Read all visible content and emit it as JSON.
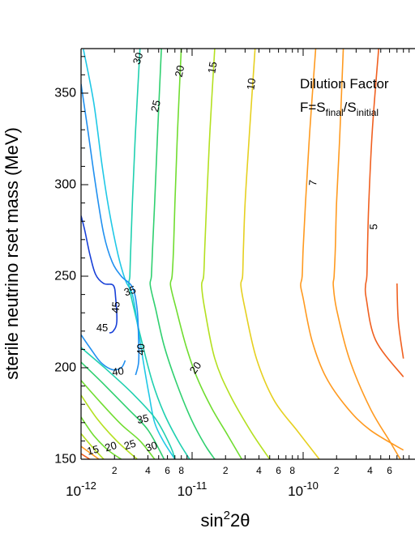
{
  "chart_data": {
    "type": "contour",
    "xlabel": "sin",
    "xlabel_sup": "2",
    "xlabel_tail": "2θ",
    "ylabel": "sterile neutrino rset mass (MeV)",
    "annotation": {
      "line1": "Dilution Factor",
      "line2_prefix": "F=S",
      "line2_sub1": "final",
      "line2_mid": "/S",
      "line2_sub2": "initial"
    },
    "x_scale": "log",
    "xlim": [
      1e-12,
      8e-10
    ],
    "ylim": [
      150,
      375
    ],
    "x_major_ticks": [
      {
        "value": 1e-12,
        "base": "10",
        "exp": "-12"
      },
      {
        "value": 1e-11,
        "base": "10",
        "exp": "-11"
      },
      {
        "value": 1e-10,
        "base": "10",
        "exp": "-10"
      }
    ],
    "x_minor_labels": [
      {
        "value": 2e-12,
        "label": "2"
      },
      {
        "value": 4e-12,
        "label": "4"
      },
      {
        "value": 6e-12,
        "label": "6"
      },
      {
        "value": 8e-12,
        "label": "8"
      },
      {
        "value": 2e-11,
        "label": "2"
      },
      {
        "value": 4e-11,
        "label": "4"
      },
      {
        "value": 6e-11,
        "label": "6"
      },
      {
        "value": 8e-11,
        "label": "8"
      },
      {
        "value": 2e-10,
        "label": "2"
      },
      {
        "value": 4e-10,
        "label": "4"
      },
      {
        "value": 6e-10,
        "label": "6"
      }
    ],
    "y_ticks": [
      150,
      200,
      250,
      300,
      350
    ],
    "contours": [
      {
        "level": "5",
        "color": "#f06020",
        "points": [
          [
            4.8e-10,
            375
          ],
          [
            4.2e-10,
            330
          ],
          [
            3.9e-10,
            290
          ],
          [
            3.8e-10,
            265
          ],
          [
            3.75e-10,
            250
          ],
          [
            3.65e-10,
            245
          ],
          [
            3.7e-10,
            238
          ],
          [
            4.5e-10,
            215
          ],
          [
            8e-10,
            195
          ]
        ],
        "labels": [
          {
            "x": 4.3e-10,
            "y": 277,
            "angle": -88,
            "text": "5"
          }
        ]
      },
      {
        "level": "5",
        "color": "#f06020",
        "points": [
          [
            7e-10,
            246
          ],
          [
            7.2e-10,
            225
          ],
          [
            8e-10,
            205
          ]
        ],
        "labels": []
      },
      {
        "level": "7",
        "color": "#ff9a20",
        "points": [
          [
            1.3e-10,
            375
          ],
          [
            1.15e-10,
            330
          ],
          [
            1.05e-10,
            290
          ],
          [
            1e-10,
            265
          ],
          [
            9.8e-11,
            250
          ],
          [
            9.5e-11,
            245
          ],
          [
            1e-10,
            238
          ],
          [
            1.2e-10,
            215
          ],
          [
            1.6e-10,
            195
          ],
          [
            2.5e-10,
            178
          ],
          [
            4e-10,
            166
          ],
          [
            8e-10,
            155
          ]
        ],
        "labels": [
          {
            "x": 1.22e-10,
            "y": 301,
            "angle": -85,
            "text": "7"
          }
        ]
      },
      {
        "level": "7",
        "color": "#ff9a20",
        "points": [
          [
            2.3e-10,
            375
          ],
          [
            2.15e-10,
            330
          ],
          [
            2e-10,
            290
          ],
          [
            1.95e-10,
            265
          ],
          [
            1.9e-10,
            250
          ],
          [
            1.87e-10,
            245
          ],
          [
            2e-10,
            232
          ],
          [
            2.6e-10,
            205
          ],
          [
            4e-10,
            178
          ],
          [
            6e-10,
            160
          ],
          [
            7.5e-10,
            150
          ]
        ],
        "labels": []
      },
      {
        "level": "10",
        "color": "#e6d020",
        "points": [
          [
            3.7e-11,
            375
          ],
          [
            3.3e-11,
            330
          ],
          [
            3e-11,
            290
          ],
          [
            2.9e-11,
            265
          ],
          [
            2.85e-11,
            250
          ],
          [
            2.75e-11,
            245
          ],
          [
            3e-11,
            232
          ],
          [
            3.8e-11,
            205
          ],
          [
            5.5e-11,
            182
          ],
          [
            9e-11,
            165
          ],
          [
            1.4e-10,
            150
          ]
        ],
        "labels": [
          {
            "x": 3.4e-11,
            "y": 355,
            "angle": -82,
            "text": "10"
          }
        ]
      },
      {
        "level": "15",
        "color": "#b4e020",
        "points": [
          [
            1.6e-11,
            375
          ],
          [
            1.45e-11,
            330
          ],
          [
            1.35e-11,
            290
          ],
          [
            1.3e-11,
            265
          ],
          [
            1.27e-11,
            250
          ],
          [
            1.22e-11,
            245
          ],
          [
            1.3e-11,
            232
          ],
          [
            1.6e-11,
            205
          ],
          [
            2.2e-11,
            185
          ],
          [
            3.4e-11,
            165
          ],
          [
            5e-11,
            150
          ]
        ],
        "labels": [
          {
            "x": 1.52e-11,
            "y": 364,
            "angle": -80,
            "text": "15"
          }
        ]
      },
      {
        "level": "20",
        "color": "#70dd30",
        "points": [
          [
            8e-12,
            375
          ],
          [
            7.4e-12,
            330
          ],
          [
            7e-12,
            290
          ],
          [
            6.8e-12,
            265
          ],
          [
            6.6e-12,
            250
          ],
          [
            6.4e-12,
            245
          ],
          [
            7.2e-12,
            232
          ],
          [
            8.8e-12,
            212
          ],
          [
            1.1e-11,
            195
          ],
          [
            1.5e-11,
            178
          ],
          [
            2.1e-11,
            163
          ],
          [
            2.8e-11,
            150
          ]
        ],
        "labels": [
          {
            "x": 7.7e-12,
            "y": 362,
            "angle": -78,
            "text": "20"
          },
          {
            "x": 1.07e-11,
            "y": 200,
            "angle": -55,
            "text": "20"
          }
        ]
      },
      {
        "level": "25",
        "color": "#30d070",
        "points": [
          [
            5.3e-12,
            375
          ],
          [
            4.9e-12,
            330
          ],
          [
            4.6e-12,
            290
          ],
          [
            4.4e-12,
            265
          ],
          [
            4.3e-12,
            250
          ],
          [
            4.2e-12,
            245
          ],
          [
            4.7e-12,
            232
          ],
          [
            5.6e-12,
            212
          ],
          [
            7.2e-12,
            192
          ],
          [
            9.8e-12,
            172
          ],
          [
            1.3e-11,
            158
          ],
          [
            1.6e-11,
            150
          ]
        ],
        "labels": [
          {
            "x": 4.7e-12,
            "y": 343,
            "angle": -76,
            "text": "25"
          }
        ]
      },
      {
        "level": "30",
        "color": "#20d0b0",
        "points": [
          [
            3.4e-12,
            375
          ],
          [
            3.1e-12,
            330
          ],
          [
            2.9e-12,
            290
          ],
          [
            2.8e-12,
            265
          ],
          [
            2.75e-12,
            250
          ],
          [
            2.7e-12,
            245
          ],
          [
            3e-12,
            232
          ],
          [
            3.6e-12,
            212
          ],
          [
            4.4e-12,
            192
          ],
          [
            5.6e-12,
            175
          ],
          [
            7.5e-12,
            160
          ],
          [
            9.5e-12,
            150
          ]
        ],
        "labels": [
          {
            "x": 3.25e-12,
            "y": 369,
            "angle": -72,
            "text": "30"
          }
        ]
      },
      {
        "level": "35",
        "color": "#20c8e6",
        "points": [
          [
            1.05e-12,
            374
          ],
          [
            1.3e-12,
            345
          ],
          [
            1.55e-12,
            310
          ],
          [
            1.8e-12,
            285
          ],
          [
            2.15e-12,
            262
          ],
          [
            2.5e-12,
            248
          ],
          [
            2.9e-12,
            240
          ],
          [
            3.2e-12,
            225
          ],
          [
            3.6e-12,
            205
          ],
          [
            4.1e-12,
            185
          ],
          [
            4.6e-12,
            170
          ],
          [
            5.5e-12,
            160
          ],
          [
            7e-12,
            150
          ]
        ],
        "labels": [
          {
            "x": 2.75e-12,
            "y": 242,
            "angle": -18,
            "text": "35"
          },
          {
            "x": 3.6e-12,
            "y": 172,
            "angle": -12,
            "text": "35"
          }
        ]
      },
      {
        "level": "40",
        "color": "#2090f0",
        "points": [
          [
            1e-12,
            355
          ],
          [
            1.15e-12,
            330
          ],
          [
            1.35e-12,
            300
          ],
          [
            1.6e-12,
            273
          ],
          [
            1.9e-12,
            258
          ],
          [
            2.3e-12,
            250
          ],
          [
            2.9e-12,
            244
          ],
          [
            3.2e-12,
            232
          ],
          [
            3.3e-12,
            215
          ],
          [
            3.3e-12,
            203
          ],
          [
            3.1e-12,
            196
          ]
        ],
        "labels": [
          {
            "x": 3.45e-12,
            "y": 210,
            "angle": -88,
            "text": "40"
          }
        ]
      },
      {
        "level": "40",
        "color": "#2090f0",
        "points": [
          [
            1e-12,
            218
          ],
          [
            1.2e-12,
            211
          ],
          [
            1.5e-12,
            203
          ],
          [
            1.9e-12,
            199
          ],
          [
            2.3e-12,
            200
          ],
          [
            2.5e-12,
            204
          ]
        ],
        "labels": [
          {
            "x": 2.15e-12,
            "y": 198,
            "angle": -8,
            "text": "40"
          }
        ]
      },
      {
        "level": "45",
        "color": "#1840d8",
        "points": [
          [
            1e-12,
            283
          ],
          [
            1.08e-12,
            275
          ],
          [
            1.2e-12,
            262
          ],
          [
            1.35e-12,
            251
          ],
          [
            1.6e-12,
            246
          ],
          [
            1.95e-12,
            245
          ],
          [
            2.05e-12,
            238
          ],
          [
            2.1e-12,
            225
          ],
          [
            1.95e-12,
            220
          ],
          [
            1.8e-12,
            219
          ]
        ],
        "labels": [
          {
            "x": 2.05e-12,
            "y": 233,
            "angle": -85,
            "text": "45"
          },
          {
            "x": 1.55e-12,
            "y": 222,
            "angle": 0,
            "text": "45"
          }
        ]
      },
      {
        "level": "15",
        "color": "#b4e020",
        "points": [
          [
            1e-12,
            185
          ],
          [
            1.4e-12,
            172
          ],
          [
            2.1e-12,
            160
          ],
          [
            3.2e-12,
            150
          ]
        ],
        "labels": []
      },
      {
        "level": "20",
        "color": "#70dd30",
        "points": [
          [
            1e-12,
            173
          ],
          [
            1.3e-12,
            163
          ],
          [
            1.75e-12,
            155
          ],
          [
            2.3e-12,
            150
          ]
        ],
        "labels": []
      },
      {
        "level": "15",
        "color": "#b4e020",
        "points": [
          [
            1e-12,
            164
          ],
          [
            1.25e-12,
            157
          ],
          [
            1.6e-12,
            150
          ]
        ],
        "labels": [
          {
            "x": 1.28e-12,
            "y": 155,
            "angle": -14,
            "text": "15"
          }
        ]
      },
      {
        "level": "20",
        "color": "#70dd30",
        "points": [
          [
            1e-12,
            193
          ],
          [
            1.5e-12,
            181
          ],
          [
            2.3e-12,
            169
          ],
          [
            3.4e-12,
            160
          ],
          [
            4.6e-12,
            150
          ]
        ],
        "labels": [
          {
            "x": 1.85e-12,
            "y": 157,
            "angle": -16,
            "text": "20"
          }
        ]
      },
      {
        "level": "25",
        "color": "#30d070",
        "points": [
          [
            1e-12,
            203
          ],
          [
            1.6e-12,
            191
          ],
          [
            2.6e-12,
            178
          ],
          [
            4e-12,
            166
          ],
          [
            5.6e-12,
            150
          ]
        ],
        "labels": [
          {
            "x": 2.75e-12,
            "y": 158,
            "angle": -18,
            "text": "25"
          }
        ]
      },
      {
        "level": "30",
        "color": "#20d0b0",
        "points": [
          [
            1e-12,
            211
          ],
          [
            1.7e-12,
            199
          ],
          [
            2.9e-12,
            186
          ],
          [
            4.7e-12,
            172
          ],
          [
            6.4e-12,
            157
          ],
          [
            7e-12,
            150
          ]
        ],
        "labels": [
          {
            "x": 4.3e-12,
            "y": 157,
            "angle": -18,
            "text": "30"
          }
        ]
      },
      {
        "level": "5",
        "color": "#f06020",
        "points": [
          [
            1.2e-12,
            150
          ],
          [
            1e-12,
            153
          ]
        ],
        "labels": []
      },
      {
        "level": "7",
        "color": "#ff9a20",
        "points": [
          [
            1.45e-12,
            150
          ],
          [
            1e-12,
            157
          ]
        ],
        "labels": []
      }
    ]
  }
}
